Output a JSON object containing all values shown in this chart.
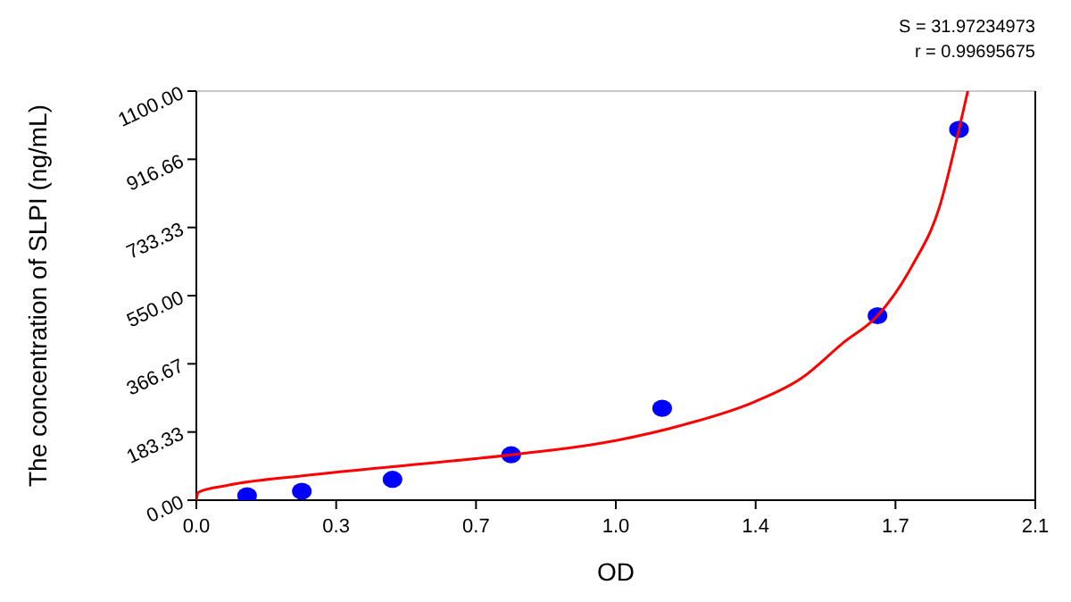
{
  "chart_data": {
    "type": "scatter",
    "xlabel": "OD",
    "ylabel": "The concentration of SLPI (ng/mL)",
    "annotations": [
      "S = 31.97234973",
      "r = 0.99695675"
    ],
    "xlim": [
      0,
      2.1
    ],
    "ylim": [
      0,
      1100
    ],
    "xticks": [
      {
        "value": 0,
        "label": "0.0"
      },
      {
        "value": 0.35,
        "label": "0.3"
      },
      {
        "value": 0.7,
        "label": "0.7"
      },
      {
        "value": 1.05,
        "label": "1.0"
      },
      {
        "value": 1.4,
        "label": "1.4"
      },
      {
        "value": 1.75,
        "label": "1.7"
      },
      {
        "value": 2.1,
        "label": "2.1"
      }
    ],
    "yticks": [
      {
        "value": 0,
        "label": "0.00"
      },
      {
        "value": 183.33,
        "label": "183.33"
      },
      {
        "value": 366.67,
        "label": "366.67"
      },
      {
        "value": 550,
        "label": "550.00"
      },
      {
        "value": 733.33,
        "label": "733.33"
      },
      {
        "value": 916.66,
        "label": "916.66"
      },
      {
        "value": 1100,
        "label": "1100.00"
      }
    ],
    "grid": false,
    "series": [
      {
        "color": "#0000ff",
        "marker": "circle",
        "x": [
          0.127,
          0.264,
          0.491,
          0.788,
          1.166,
          1.705,
          1.909
        ],
        "values": [
          12,
          24,
          56,
          122,
          247,
          496,
          997
        ]
      },
      {
        "type": "line",
        "color": "#ff0000",
        "marker": "none",
        "line_style": "solid",
        "x": [
          0,
          0.005,
          0.074,
          0.28,
          0.537,
          0.788,
          1.053,
          1.224,
          1.396,
          1.516,
          1.619,
          1.705,
          1.791,
          1.86,
          1.909,
          1.931
        ],
        "values": [
          0,
          21,
          39,
          67,
          95,
          122,
          161,
          204,
          264,
          329,
          423,
          496,
          629,
          788,
          997,
          1100
        ]
      }
    ]
  }
}
